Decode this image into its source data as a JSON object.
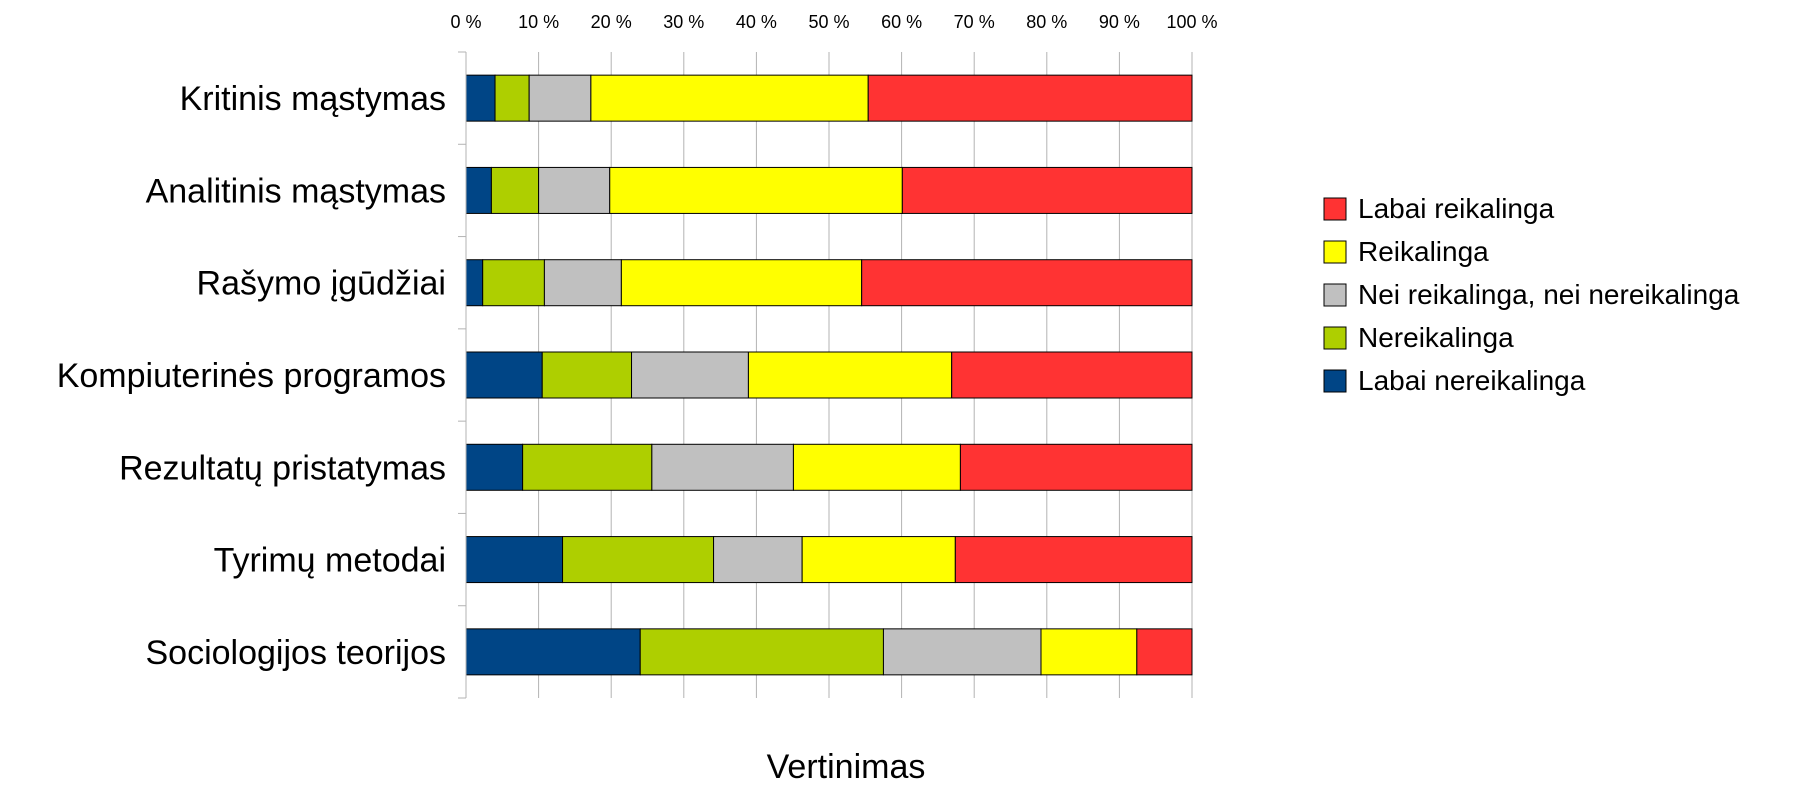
{
  "chart_data": {
    "type": "bar",
    "orientation": "horizontal",
    "stacked": "percent",
    "title": "",
    "xlabel": "Vertinimas",
    "ylabel": "",
    "xlim": [
      0,
      100
    ],
    "x_ticks": [
      "0 %",
      "10 %",
      "20 %",
      "30 %",
      "40 %",
      "50 %",
      "60 %",
      "70 %",
      "80 %",
      "90 %",
      "100 %"
    ],
    "x_axis_position": "top",
    "grid": true,
    "legend_position": "right",
    "categories": [
      "Kritinis mąstymas",
      "Analitinis mąstymas",
      "Rašymo įgūdžiai",
      "Kompiuterinės programos",
      "Rezultatų pristatymas",
      "Tyrimų metodai",
      "Sociologijos teorijos"
    ],
    "series": [
      {
        "name": "Labai nereikalinga",
        "color": "#004586",
        "values": [
          4,
          3.5,
          2.3,
          10.5,
          7.8,
          13.3,
          24
        ]
      },
      {
        "name": "Nereikalinga",
        "color": "#aecf00",
        "values": [
          4.7,
          6.5,
          8.5,
          12.3,
          17.8,
          20.8,
          33.5
        ]
      },
      {
        "name": "Nei reikalinga, nei nereikalinga",
        "color": "#c0c0c0",
        "values": [
          8.5,
          9.8,
          10.6,
          16.1,
          19.5,
          12.2,
          21.7
        ]
      },
      {
        "name": "Reikalinga",
        "color": "#ffff00",
        "values": [
          38.2,
          40.3,
          33.1,
          28,
          23,
          21.1,
          13.2
        ]
      },
      {
        "name": "Labai reikalinga",
        "color": "#ff3333",
        "values": [
          44.6,
          39.9,
          45.5,
          33.1,
          31.9,
          32.6,
          7.6
        ]
      }
    ],
    "legend_order": [
      "Labai reikalinga",
      "Reikalinga",
      "Nei reikalinga, nei nereikalinga",
      "Nereikalinga",
      "Labai nereikalinga"
    ]
  }
}
